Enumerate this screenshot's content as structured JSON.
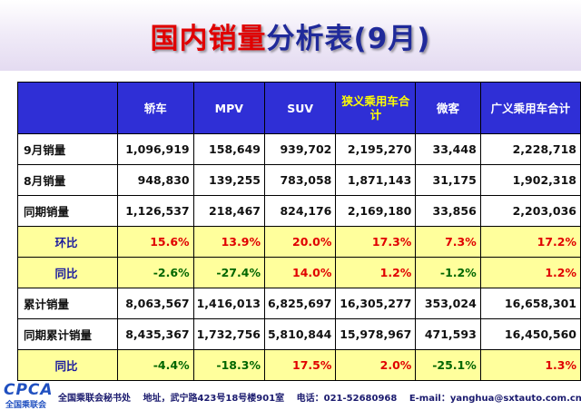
{
  "title": {
    "part1": "国内销量",
    "part2": "分析表(9月)"
  },
  "table": {
    "columns": [
      "轿车",
      "MPV",
      "SUV",
      "狭义乘用车合计",
      "微客",
      "广义乘用车合计"
    ],
    "rows": [
      {
        "label": "9月销量",
        "values": [
          "1,096,919",
          "158,649",
          "939,702",
          "2,195,270",
          "33,448",
          "2,228,718"
        ]
      },
      {
        "label": "8月销量",
        "values": [
          "948,830",
          "139,255",
          "783,058",
          "1,871,143",
          "31,175",
          "1,902,318"
        ]
      },
      {
        "label": "同期销量",
        "values": [
          "1,126,537",
          "218,467",
          "824,176",
          "2,169,180",
          "33,856",
          "2,203,036"
        ]
      },
      {
        "label": "环比",
        "values": [
          "15.6%",
          "13.9%",
          "20.0%",
          "17.3%",
          "7.3%",
          "17.2%"
        ]
      },
      {
        "label": "同比",
        "values": [
          "-2.6%",
          "-27.4%",
          "14.0%",
          "1.2%",
          "-1.2%",
          "1.2%"
        ]
      },
      {
        "label": "累计销量",
        "values": [
          "8,063,567",
          "1,416,013",
          "6,825,697",
          "16,305,277",
          "353,024",
          "16,658,301"
        ]
      },
      {
        "label": "同期累计销量",
        "values": [
          "8,435,367",
          "1,732,756",
          "5,810,844",
          "15,978,967",
          "471,593",
          "16,450,560"
        ]
      },
      {
        "label": "同比",
        "values": [
          "-4.4%",
          "-18.3%",
          "17.5%",
          "2.0%",
          "-25.1%",
          "1.3%"
        ]
      }
    ]
  },
  "footer": {
    "logo": "CPCA",
    "logo_sub": "全国乘联会",
    "org": "全国乘联会秘书处",
    "address": "地址，武宁路423号18号楼901室",
    "phone": "电话：021-52680968",
    "email": "E-mail：yanghua@sxtauto.com.cn"
  },
  "colors": {
    "header_bg": "#2f2fd6",
    "highlight_row": "#ffff9c",
    "positive": "#e00000",
    "negative": "#006600"
  }
}
